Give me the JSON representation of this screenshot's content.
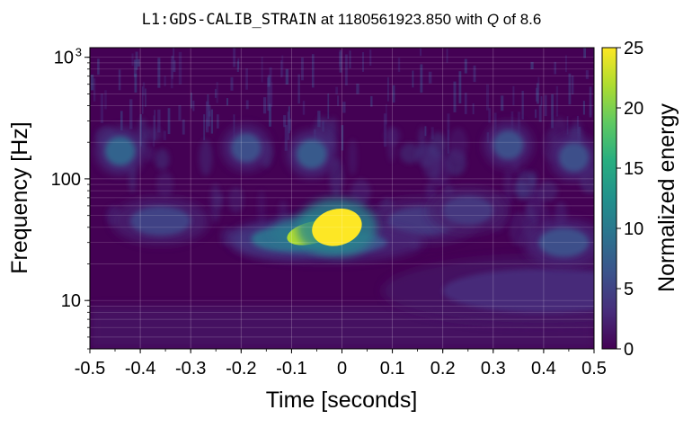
{
  "chart_data": {
    "type": "heatmap",
    "title": {
      "channel": "L1:GDS-CALIB_STRAIN",
      "connector1": " at ",
      "gps_time": "1180561923.850",
      "connector2": " with ",
      "q_symbol": "Q",
      "connector3": " of ",
      "q_value": "8.6"
    },
    "xlabel": "Time [seconds]",
    "ylabel": "Frequency [Hz]",
    "colorbar_label": "Normalized energy",
    "xlim": [
      -0.5,
      0.5
    ],
    "ylim": [
      4,
      1200
    ],
    "yscale": "log",
    "grid": true,
    "colormap": "viridis",
    "clim": [
      0,
      25
    ],
    "x_ticks": [
      {
        "value": -0.5,
        "label": "-0.5"
      },
      {
        "value": -0.4,
        "label": "-0.4"
      },
      {
        "value": -0.3,
        "label": "-0.3"
      },
      {
        "value": -0.2,
        "label": "-0.2"
      },
      {
        "value": -0.1,
        "label": "-0.1"
      },
      {
        "value": 0.0,
        "label": "0"
      },
      {
        "value": 0.1,
        "label": "0.1"
      },
      {
        "value": 0.2,
        "label": "0.2"
      },
      {
        "value": 0.3,
        "label": "0.3"
      },
      {
        "value": 0.4,
        "label": "0.4"
      },
      {
        "value": 0.5,
        "label": "0.5"
      }
    ],
    "y_ticks": [
      {
        "value": 10,
        "label": "10",
        "exponent": ""
      },
      {
        "value": 100,
        "label": "100",
        "exponent": ""
      },
      {
        "value": 1000,
        "label": "10",
        "exponent": "3"
      }
    ],
    "colorbar_ticks": [
      {
        "value": 0,
        "label": "0"
      },
      {
        "value": 5,
        "label": "5"
      },
      {
        "value": 10,
        "label": "10"
      },
      {
        "value": 15,
        "label": "15"
      },
      {
        "value": 20,
        "label": "20"
      },
      {
        "value": 25,
        "label": "25"
      }
    ],
    "features": [
      {
        "t": -0.01,
        "f": 40,
        "energy": 25,
        "dt": 0.05,
        "df_log": 0.15
      },
      {
        "t": -0.06,
        "f": 36,
        "energy": 22,
        "dt": 0.05,
        "df_log": 0.09
      },
      {
        "t": -0.11,
        "f": 32,
        "energy": 9,
        "dt": 0.07,
        "df_log": 0.1
      },
      {
        "t": -0.03,
        "f": 30,
        "energy": 6,
        "dt": 0.12,
        "df_log": 0.1
      },
      {
        "t": -0.44,
        "f": 170,
        "energy": 8,
        "dt": 0.03,
        "df_log": 0.12
      },
      {
        "t": -0.19,
        "f": 180,
        "energy": 6,
        "dt": 0.03,
        "df_log": 0.12
      },
      {
        "t": -0.06,
        "f": 160,
        "energy": 7,
        "dt": 0.03,
        "df_log": 0.12
      },
      {
        "t": 0.33,
        "f": 190,
        "energy": 6,
        "dt": 0.03,
        "df_log": 0.12
      },
      {
        "t": 0.46,
        "f": 150,
        "energy": 6,
        "dt": 0.03,
        "df_log": 0.12
      },
      {
        "t": 0.44,
        "f": 30,
        "energy": 6,
        "dt": 0.05,
        "df_log": 0.12
      },
      {
        "t": -0.36,
        "f": 45,
        "energy": 5,
        "dt": 0.06,
        "df_log": 0.12
      },
      {
        "t": 0.16,
        "f": 45,
        "energy": 4,
        "dt": 0.07,
        "df_log": 0.12
      },
      {
        "t": 0.25,
        "f": 55,
        "energy": 4,
        "dt": 0.05,
        "df_log": 0.12
      },
      {
        "t": 0.4,
        "f": 12,
        "energy": 3,
        "dt": 0.2,
        "df_log": 0.18
      }
    ]
  }
}
